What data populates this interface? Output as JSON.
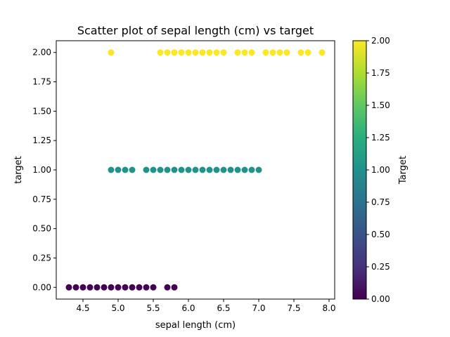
{
  "chart_data": {
    "type": "scatter",
    "title": "Scatter plot of sepal length (cm) vs target",
    "xlabel": "sepal length (cm)",
    "ylabel": "target",
    "xlim": [
      4.12,
      8.08
    ],
    "ylim": [
      -0.1,
      2.1
    ],
    "xticks": [
      4.5,
      5.0,
      5.5,
      6.0,
      6.5,
      7.0,
      7.5,
      8.0
    ],
    "xtick_labels": [
      "4.5",
      "5.0",
      "5.5",
      "6.0",
      "6.5",
      "7.0",
      "7.5",
      "8.0"
    ],
    "yticks": [
      0.0,
      0.25,
      0.5,
      0.75,
      1.0,
      1.25,
      1.5,
      1.75,
      2.0
    ],
    "ytick_labels": [
      "0.00",
      "0.25",
      "0.50",
      "0.75",
      "1.00",
      "1.25",
      "1.50",
      "1.75",
      "2.00"
    ],
    "grid": false,
    "colormap": "viridis",
    "colors": {
      "class_0": "#440154",
      "class_1": "#21918c",
      "class_2": "#fde725"
    },
    "colorbar": {
      "label": "Target",
      "range": [
        0,
        2
      ],
      "ticks": [
        0.0,
        0.25,
        0.5,
        0.75,
        1.0,
        1.25,
        1.5,
        1.75,
        2.0
      ],
      "tick_labels": [
        "0.00",
        "0.25",
        "0.50",
        "0.75",
        "1.00",
        "1.25",
        "1.50",
        "1.75",
        "2.00"
      ]
    },
    "series": [
      {
        "target": 0,
        "x": [
          4.3,
          4.4,
          4.5,
          4.6,
          4.7,
          4.8,
          4.9,
          5.0,
          5.1,
          5.2,
          5.3,
          5.4,
          5.5,
          5.7,
          5.8
        ],
        "y": [
          0,
          0,
          0,
          0,
          0,
          0,
          0,
          0,
          0,
          0,
          0,
          0,
          0,
          0,
          0
        ]
      },
      {
        "target": 1,
        "x": [
          4.9,
          5.0,
          5.1,
          5.2,
          5.4,
          5.5,
          5.6,
          5.7,
          5.8,
          5.9,
          6.0,
          6.1,
          6.2,
          6.3,
          6.4,
          6.5,
          6.6,
          6.7,
          6.8,
          6.9,
          7.0
        ],
        "y": [
          1,
          1,
          1,
          1,
          1,
          1,
          1,
          1,
          1,
          1,
          1,
          1,
          1,
          1,
          1,
          1,
          1,
          1,
          1,
          1,
          1
        ]
      },
      {
        "target": 2,
        "x": [
          4.9,
          5.6,
          5.7,
          5.8,
          5.9,
          6.0,
          6.1,
          6.2,
          6.3,
          6.4,
          6.5,
          6.7,
          6.8,
          6.9,
          7.1,
          7.2,
          7.3,
          7.4,
          7.6,
          7.7,
          7.9
        ],
        "y": [
          2,
          2,
          2,
          2,
          2,
          2,
          2,
          2,
          2,
          2,
          2,
          2,
          2,
          2,
          2,
          2,
          2,
          2,
          2,
          2,
          2
        ]
      }
    ]
  }
}
